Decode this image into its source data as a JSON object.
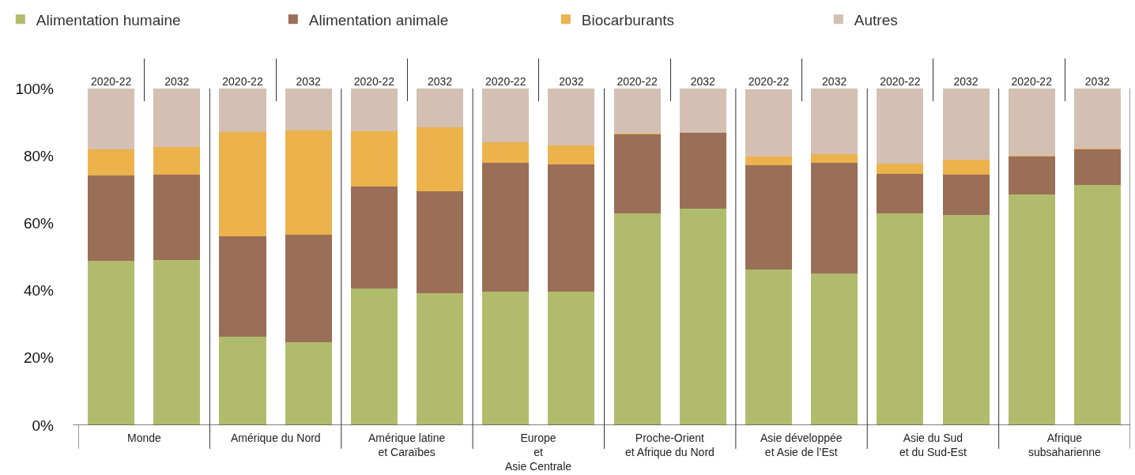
{
  "chart_data": {
    "type": "bar",
    "stacked": true,
    "legend": "top left",
    "grid": false,
    "categories": [
      "2020-22",
      "2032",
      "2020-22",
      "2032",
      "2020-22",
      "2032",
      "2020-22",
      "2032",
      "2020-22",
      "2032",
      "2020-22",
      "2032",
      "2020-22",
      "2032",
      "2020-22",
      "2032"
    ],
    "series": [
      {
        "name": "Alimentation humaine",
        "color": "#b0bc6c",
        "values": [
          48.8,
          49.0,
          26.3,
          24.7,
          40.7,
          39.2,
          39.7,
          39.7,
          62.9,
          64.3,
          46.2,
          45.1,
          62.9,
          62.4,
          68.5,
          71.4
        ]
      },
      {
        "name": "Alimentation animale",
        "color": "#9b6e58",
        "values": [
          25.4,
          25.5,
          29.8,
          31.9,
          30.3,
          30.3,
          38.2,
          37.8,
          23.5,
          22.6,
          31.0,
          32.8,
          11.7,
          12.0,
          11.3,
          10.5
        ]
      },
      {
        "name": "Biocarburants",
        "color": "#ecb24c",
        "values": [
          7.7,
          8.1,
          31.0,
          31.0,
          16.4,
          19.1,
          6.2,
          5.6,
          0.2,
          0,
          2.6,
          2.6,
          3.1,
          4.5,
          0.2,
          0.3
        ]
      },
      {
        "name": "Autres",
        "color": "#d3c0b3",
        "values": [
          18.1,
          17.4,
          12.9,
          12.4,
          12.6,
          11.4,
          15.9,
          16.9,
          13.4,
          13.1,
          20.0,
          19.5,
          22.3,
          21.1,
          20.0,
          17.8
        ]
      }
    ],
    "ylim": [
      0,
      100
    ],
    "yticks": [
      {
        "value": 0,
        "label": "0%"
      },
      {
        "value": 20,
        "label": "20%"
      },
      {
        "value": 40,
        "label": "40%"
      },
      {
        "value": 60,
        "label": "60%"
      },
      {
        "value": 80,
        "label": "80%"
      },
      {
        "value": 100,
        "label": "100%"
      }
    ],
    "annotations": [
      "Monde",
      "Amérique du Nord",
      "Amérique latine\net Caraïbes",
      "Europe\net\nAsie Centrale",
      "Proche-Orient\net Afrique du Nord",
      "Asie développée\net Asie de l’Est",
      "Asie du Sud\net du Sud-Est",
      "Afrique\nsubsaharienne"
    ]
  }
}
